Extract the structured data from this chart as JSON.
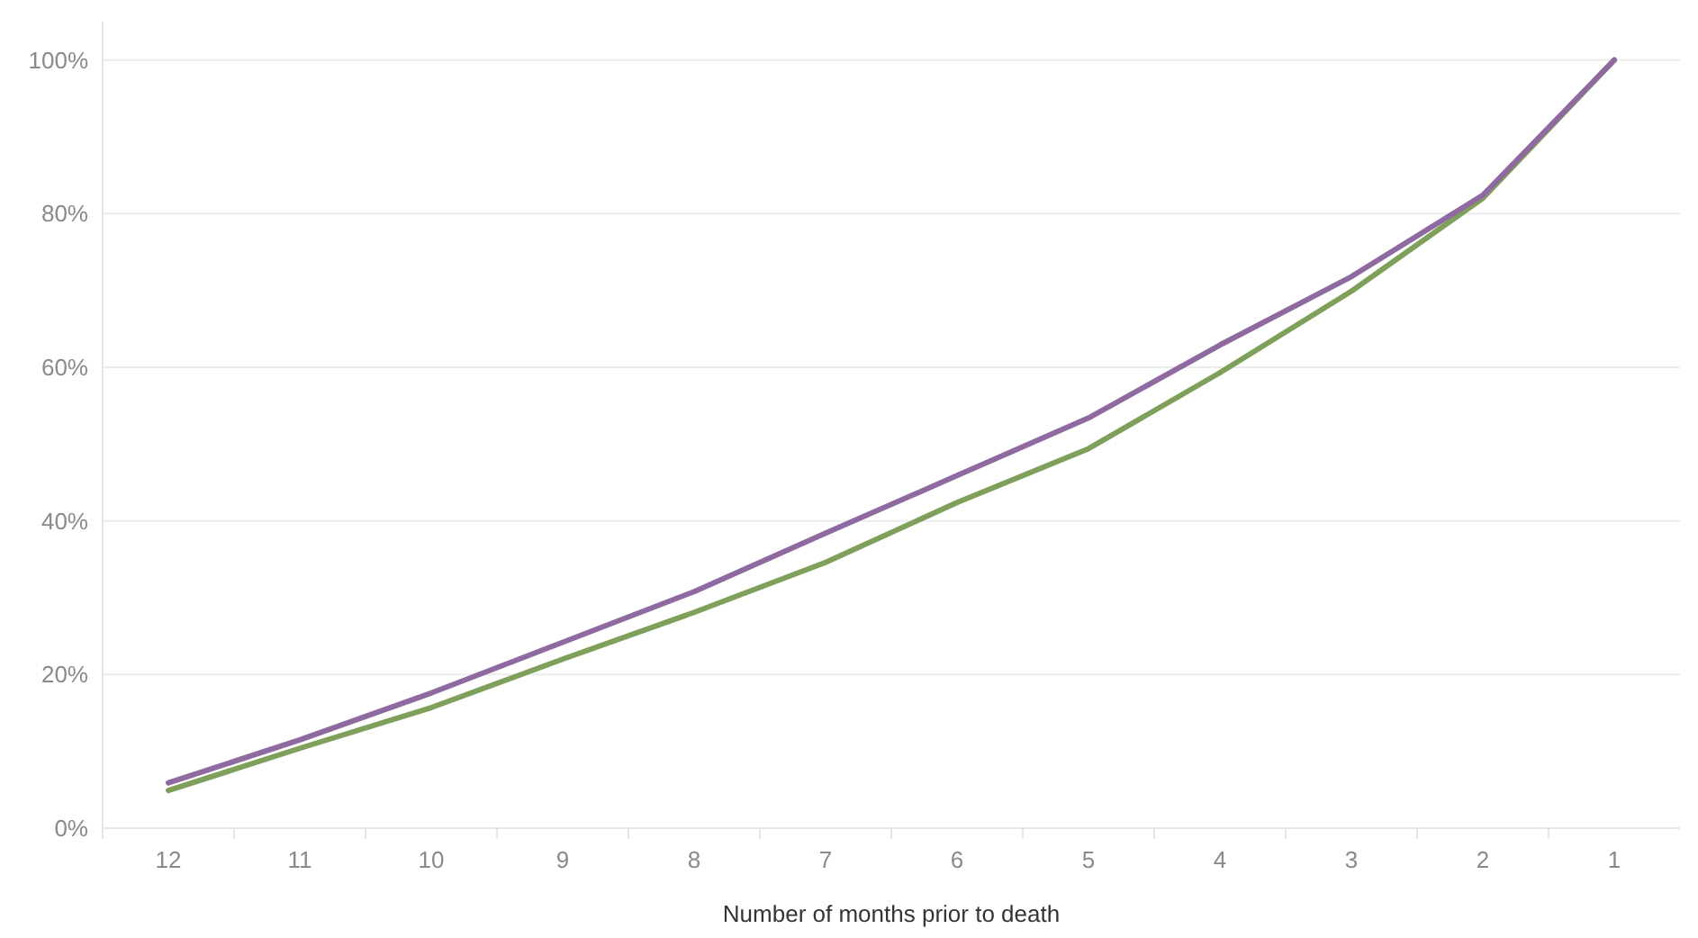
{
  "chart_data": {
    "type": "line",
    "xlabel": "Number of months prior to death",
    "categories": [
      "12",
      "11",
      "10",
      "9",
      "8",
      "7",
      "6",
      "5",
      "4",
      "3",
      "2",
      "1"
    ],
    "series": [
      {
        "color": "#7fa05a",
        "values": [
          4.9,
          10.4,
          15.7,
          22,
          28.1,
          34.6,
          42.4,
          49.4,
          59.3,
          69.9,
          82,
          100
        ]
      },
      {
        "color": "#8e6aa0",
        "values": [
          5.9,
          11.5,
          17.6,
          24.2,
          30.8,
          38.4,
          45.9,
          53.4,
          62.9,
          71.8,
          82.4,
          100
        ]
      }
    ],
    "ylim": [
      0,
      105
    ],
    "yticks": [
      {
        "value": 0,
        "label": "0%"
      },
      {
        "value": 20,
        "label": "20%"
      },
      {
        "value": 40,
        "label": "40%"
      },
      {
        "value": 60,
        "label": "60%"
      },
      {
        "value": 80,
        "label": "80%"
      },
      {
        "value": 100,
        "label": "100%"
      }
    ],
    "grid": "y",
    "marker": "none",
    "line_style": "solid"
  }
}
